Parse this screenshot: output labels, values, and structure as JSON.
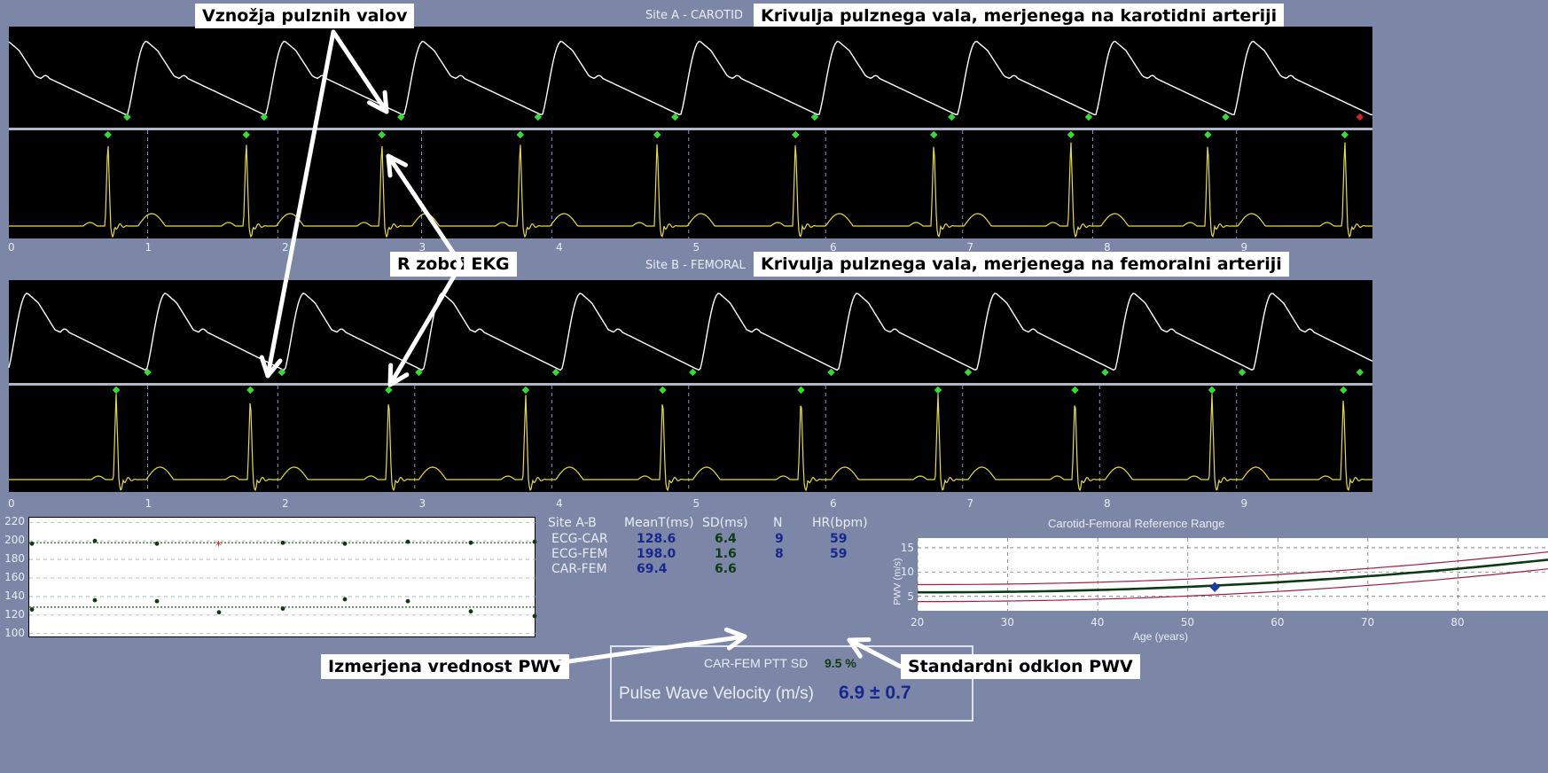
{
  "site_a": {
    "label": "Site A - CAROTID",
    "callout": "Krivulja pulznega vala, merjenega na karotidni arteriji"
  },
  "site_b": {
    "label": "Site B - FEMORAL",
    "callout": "Krivulja pulznega vala, merjenega na femoralni arteriji"
  },
  "callouts": {
    "foot": "Vznožja pulznih valov",
    "r_peaks": "R zobci EKG",
    "measured": "Izmerjena vrednost PWV",
    "stddev": "Standardni odklon PWV"
  },
  "time_axis": {
    "ticks": [
      "0",
      "1",
      "2",
      "3",
      "4",
      "5",
      "6",
      "7",
      "8",
      "9"
    ]
  },
  "scatter": {
    "y_ticks": [
      "220",
      "200",
      "180",
      "160",
      "140",
      "120",
      "100"
    ]
  },
  "stats": {
    "headers": [
      "Site A-B",
      "MeanT(ms)",
      "SD(ms)",
      "N",
      "HR(bpm)"
    ],
    "rows": [
      {
        "site": "ECG-CAR",
        "mean": "128.6",
        "sd": "6.4",
        "n": "9",
        "hr": "59"
      },
      {
        "site": "ECG-FEM",
        "mean": "198.0",
        "sd": "1.6",
        "n": "8",
        "hr": "59"
      },
      {
        "site": "CAR-FEM",
        "mean": "69.4",
        "sd": "6.6",
        "n": "",
        "hr": ""
      }
    ],
    "ptt_sd_label": "CAR-FEM PTT SD",
    "ptt_sd_value": "9.5 %",
    "pwv_label": "Pulse Wave Velocity (m/s)",
    "pwv_value": "6.9 ± 0.7"
  },
  "reference": {
    "title": "Carotid-Femoral Reference Range",
    "ylabel": "PWV (m/s)",
    "xlabel": "Age (years)",
    "y_ticks": [
      "15",
      "10",
      "5"
    ],
    "x_ticks": [
      "20",
      "30",
      "40",
      "50",
      "60",
      "70",
      "80"
    ]
  },
  "colors": {
    "background": "#7c87a7",
    "pulse_wave": "#ffffff",
    "ecg": "#e8dd3a",
    "foot_marker": "#33dd33",
    "bad_marker": "#d22424",
    "value_blue": "#1a2690"
  }
}
